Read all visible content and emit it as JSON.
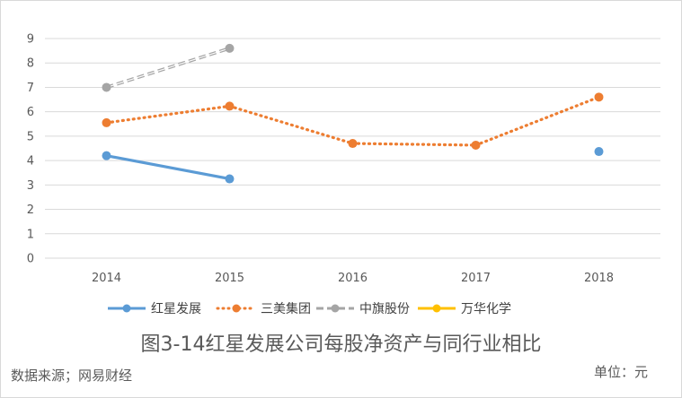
{
  "chart_data": {
    "type": "line",
    "categories": [
      "2014",
      "2015",
      "2016",
      "2017",
      "2018"
    ],
    "ylim": [
      0,
      9
    ],
    "yticks": [
      "0",
      "1",
      "2",
      "3",
      "4",
      "5",
      "6",
      "7",
      "8",
      "9"
    ],
    "grid": true,
    "legend_position": "bottom",
    "series": [
      {
        "name": "红星发展",
        "values": [
          4.2,
          3.25,
          null,
          null,
          4.37
        ],
        "color": "#5b9bd5",
        "dash": "solid"
      },
      {
        "name": "三美集团",
        "values": [
          5.55,
          6.23,
          4.7,
          4.63,
          6.6
        ],
        "color": "#ed7d31",
        "dash": "dotted"
      },
      {
        "name": "中旗股份",
        "values": [
          7.0,
          8.6,
          null,
          null,
          null
        ],
        "color": "#a5a5a5",
        "dash": "dashed"
      },
      {
        "name": "万华化学",
        "values": [
          null,
          null,
          null,
          null,
          null
        ],
        "color": "#ffc000",
        "dash": "solid"
      }
    ]
  },
  "caption": "图3-14红星发展公司每股净资产与同行业相比",
  "source": "数据来源；网易财经",
  "unit": "单位：元"
}
